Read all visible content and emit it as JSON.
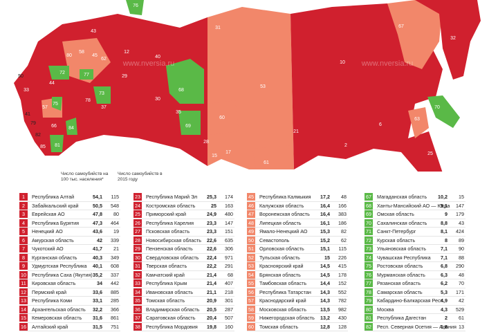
{
  "watermark": "www.nversia.ru",
  "map": {
    "labels": [
      "42",
      "71",
      "76",
      "43",
      "62",
      "40",
      "68",
      "53",
      "10",
      "67",
      "32",
      "70",
      "63",
      "25",
      "60",
      "69",
      "61",
      "21",
      "2",
      "6",
      "31",
      "28",
      "15",
      "17",
      "16",
      "50",
      "33",
      "57",
      "41",
      "79",
      "82",
      "85",
      "81",
      "84",
      "75",
      "66",
      "72",
      "77",
      "78",
      "73",
      "58",
      "80",
      "29",
      "30",
      "35",
      "45",
      "44",
      "37",
      "12"
    ]
  },
  "table": {
    "headers": [
      "Число самоубийств на 100 тыс. населения*",
      "Число самоубийств в 2015 году"
    ],
    "columns": [
      {
        "color": "#d0202e",
        "rows": [
          [
            "1",
            "Республика Алтай",
            "54,1",
            "115"
          ],
          [
            "2",
            "Забайкальский край",
            "50,5",
            "548"
          ],
          [
            "3",
            "Еврейская АО",
            "47,8",
            "80"
          ],
          [
            "4",
            "Республика Бурятия",
            "47,3",
            "464"
          ],
          [
            "5",
            "Ненецкий АО",
            "43,6",
            "19"
          ],
          [
            "6",
            "Амурская область",
            "42",
            "339"
          ],
          [
            "7",
            "Чукотский АО",
            "41,7",
            "21"
          ],
          [
            "8",
            "Курганская область",
            "40,3",
            "349"
          ],
          [
            "9",
            "Удмуртская Республика",
            "40,1",
            "608"
          ],
          [
            "10",
            "Республика Саха (Якутия)",
            "35,2",
            "337"
          ],
          [
            "11",
            "Кировская область",
            "34",
            "442"
          ],
          [
            "12",
            "Пермский край",
            "33,6",
            "885"
          ],
          [
            "13",
            "Республика Коми",
            "33,1",
            "285"
          ],
          [
            "14",
            "Архангельская область",
            "32,2",
            "366"
          ],
          [
            "15",
            "Кемеровская область",
            "31,6",
            "861"
          ],
          [
            "16",
            "Алтайский край",
            "31,5",
            "751"
          ]
        ]
      },
      {
        "color": "#d0202e",
        "rows": [
          [
            "23",
            "Республика Марий Эл",
            "25,3",
            "174"
          ],
          [
            "24",
            "Костромская область",
            "25",
            "163"
          ],
          [
            "25",
            "Приморский край",
            "24,9",
            "480"
          ],
          [
            "26",
            "Республика Карелия",
            "23,3",
            "147"
          ],
          [
            "27",
            "Псковская область",
            "23,3",
            "151"
          ],
          [
            "28",
            "Новосибирская область",
            "22,6",
            "635"
          ],
          [
            "29",
            "Пензенская область",
            "22,6",
            "306"
          ],
          [
            "30",
            "Свердловская область",
            "22,4",
            "971"
          ],
          [
            "31",
            "Тверская область",
            "22,2",
            "291"
          ],
          [
            "32",
            "Камчатский край",
            "21,4",
            "68"
          ],
          [
            "33",
            "Республика Крым",
            "21,4",
            "407"
          ],
          [
            "34",
            "Ивановская область",
            "21,1",
            "218"
          ],
          [
            "35",
            "Томская область",
            "20,9",
            "301"
          ],
          [
            "36",
            "Владимирская область",
            "20,5",
            "287"
          ],
          [
            "37",
            "Саратовская область",
            "20,4",
            "507"
          ],
          [
            "38",
            "Республика Мордовия",
            "19,8",
            "160"
          ]
        ]
      },
      {
        "color": "#f2876a",
        "rows": [
          [
            "45",
            "Республика Калмыкия",
            "17,2",
            "48"
          ],
          [
            "46",
            "Калужская область",
            "16,4",
            "166"
          ],
          [
            "47",
            "Воронежская область",
            "16,4",
            "383"
          ],
          [
            "48",
            "Липецкая область",
            "16,1",
            "186"
          ],
          [
            "49",
            "Ямало-Ненецкий АО",
            "15,3",
            "82"
          ],
          [
            "50",
            "Севастополь",
            "15,2",
            "62"
          ],
          [
            "51",
            "Орловская область",
            "15,1",
            "115"
          ],
          [
            "52",
            "Тульская область",
            "15",
            "226"
          ],
          [
            "53",
            "Красноярский край",
            "14,5",
            "415"
          ],
          [
            "54",
            "Брянская область",
            "14,5",
            "178"
          ],
          [
            "55",
            "Тамбовская область",
            "14,4",
            "152"
          ],
          [
            "56",
            "Республика Татарстан",
            "14,3",
            "552"
          ],
          [
            "57",
            "Краснодарский край",
            "14,3",
            "782"
          ],
          [
            "58",
            "Московская область",
            "13,5",
            "982"
          ],
          [
            "59",
            "Нижегородская область",
            "13,2",
            "430"
          ],
          [
            "60",
            "Томская область",
            "12,8",
            "128"
          ]
        ]
      },
      {
        "color": "#5ab947",
        "rows": [
          [
            "67",
            "Магаданская область",
            "10,2",
            "15"
          ],
          [
            "68",
            "Ханты-Мансийский АО — Югра",
            "9,1",
            "147"
          ],
          [
            "69",
            "Омская область",
            "9",
            "179"
          ],
          [
            "70",
            "Сахалинская область",
            "8,8",
            "43"
          ],
          [
            "71",
            "Санкт-Петербург",
            "8,1",
            "424"
          ],
          [
            "72",
            "Курская область",
            "8",
            "89"
          ],
          [
            "73",
            "Ульяновская область",
            "7,1",
            "90"
          ],
          [
            "74",
            "Чувашская Республика",
            "7,1",
            "88"
          ],
          [
            "75",
            "Ростовская область",
            "6,8",
            "290"
          ],
          [
            "76",
            "Мурманская область",
            "6,3",
            "48"
          ],
          [
            "77",
            "Рязанская область",
            "6,2",
            "70"
          ],
          [
            "78",
            "Самарская область",
            "5,3",
            "171"
          ],
          [
            "79",
            "Кабардино-Балкарская Респ.",
            "4,9",
            "42"
          ],
          [
            "80",
            "Москва",
            "4,3",
            "529"
          ],
          [
            "81",
            "Республика Дагестан",
            "2",
            "61"
          ],
          [
            "82",
            "Респ. Северная Осетия — Алания",
            "1,8",
            "13"
          ]
        ]
      }
    ]
  }
}
